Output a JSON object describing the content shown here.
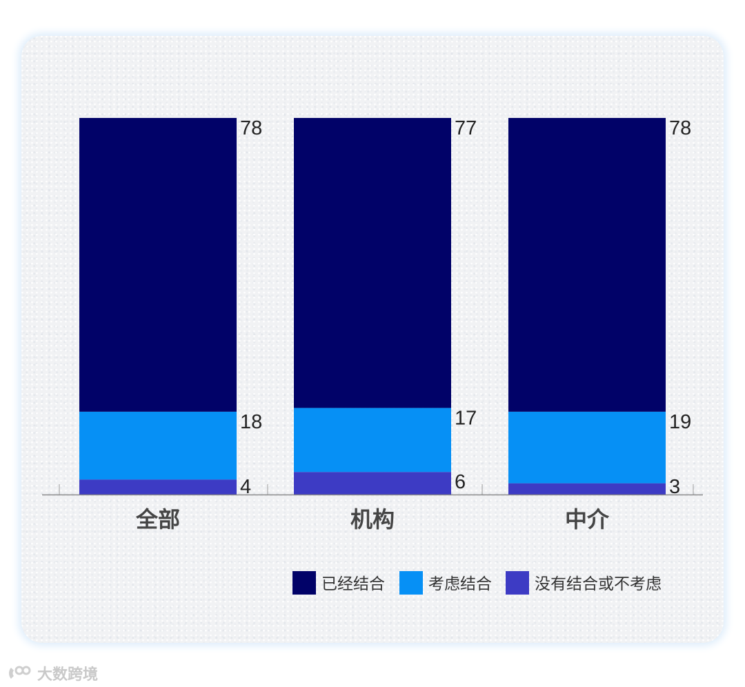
{
  "chart_data": {
    "type": "bar",
    "stacked": true,
    "categories": [
      "全部",
      "机构",
      "中介"
    ],
    "series": [
      {
        "name": "没有结合或不考虑",
        "values": [
          4,
          6,
          3
        ],
        "color": "#3d3bc4"
      },
      {
        "name": "考虑结合",
        "values": [
          18,
          17,
          19
        ],
        "color": "#0690f5"
      },
      {
        "name": "已经结合",
        "values": [
          78,
          77,
          78
        ],
        "color": "#010268"
      }
    ],
    "legend_order": [
      "已经结合",
      "考虑结合",
      "没有结合或不考虑"
    ],
    "legend_position": "bottom-right",
    "ylim": [
      0,
      100
    ],
    "grid": false,
    "title": "",
    "xlabel": "",
    "ylabel": ""
  },
  "watermark": {
    "text": "大数跨境"
  }
}
